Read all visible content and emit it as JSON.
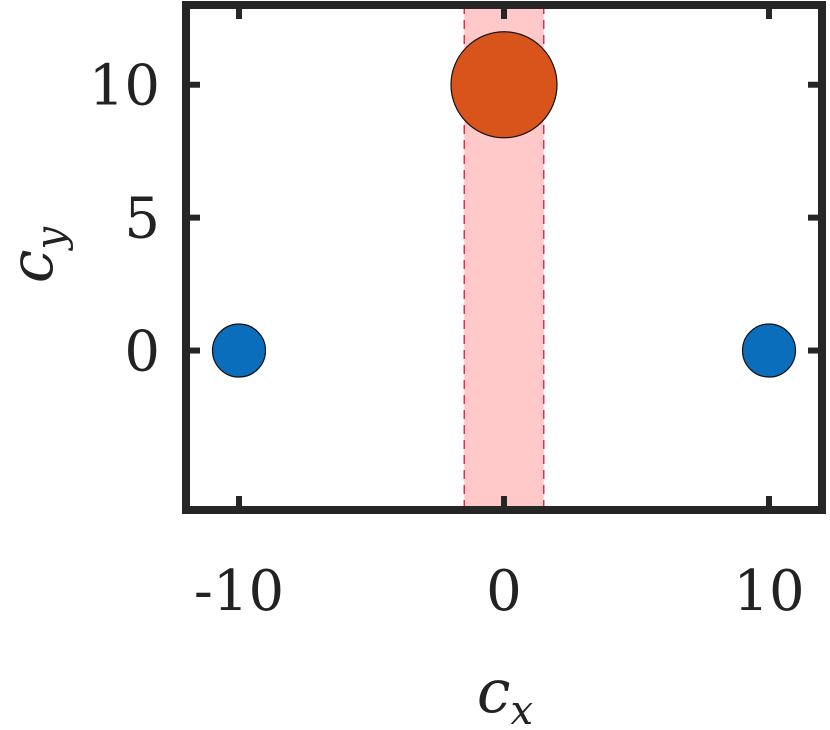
{
  "chart_data": {
    "type": "scatter",
    "xlabel": "c",
    "xlabel_sub": "x",
    "ylabel": "c",
    "ylabel_sub": "y",
    "xlim": [
      -12,
      12
    ],
    "ylim": [
      -6,
      13
    ],
    "xticks": [
      -10,
      0,
      10
    ],
    "xtick_labels": [
      "-10",
      "0",
      "10"
    ],
    "yticks": [
      0,
      5,
      10
    ],
    "ytick_labels": [
      "0",
      "5",
      "10"
    ],
    "grid": false,
    "shaded_band": {
      "x_min": -1.5,
      "x_max": 1.5,
      "fill_color": "#ffc9c9",
      "edge_color": "#e0304a",
      "edge_style": "dashed"
    },
    "points": [
      {
        "x": -10,
        "y": 0,
        "size": 1,
        "color": "#0a6ebd"
      },
      {
        "x": 10,
        "y": 0,
        "size": 1,
        "color": "#0a6ebd"
      },
      {
        "x": 0,
        "y": 10,
        "size": 2,
        "color": "#d9541a"
      }
    ]
  }
}
